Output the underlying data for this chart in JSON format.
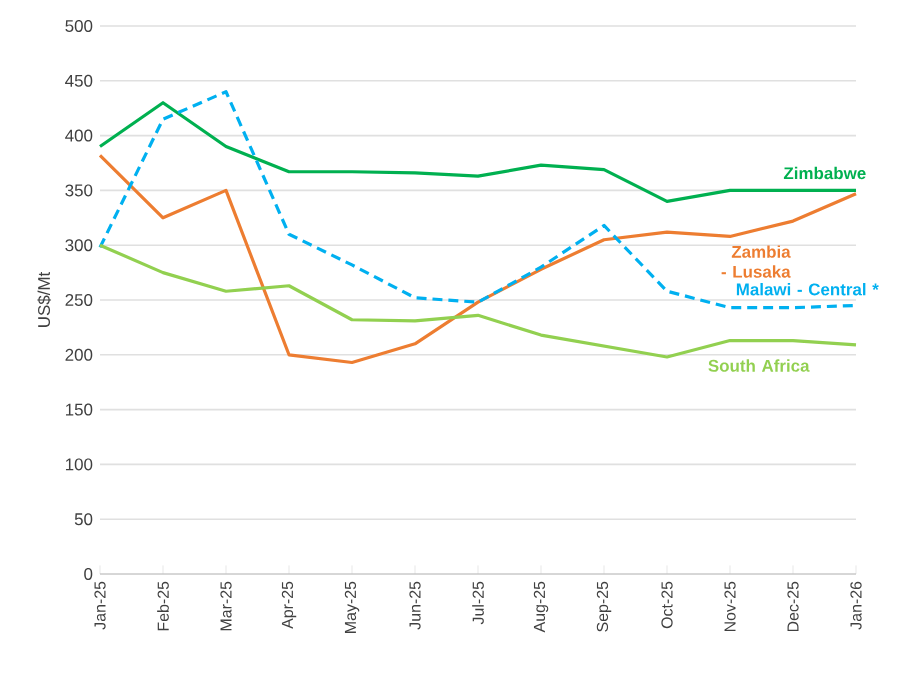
{
  "chart_data": {
    "type": "line",
    "ylabel": "US$/Mt",
    "categories": [
      "Jan-25",
      "Feb-25",
      "Mar-25",
      "Apr-25",
      "May-25",
      "Jun-25",
      "Jul-25",
      "Aug-25",
      "Sep-25",
      "Oct-25",
      "Nov-25",
      "Dec-25",
      "Jan-26"
    ],
    "ylim": [
      0,
      500
    ],
    "yticks": [
      0,
      50,
      100,
      150,
      200,
      250,
      300,
      350,
      400,
      450,
      500
    ],
    "grid": "y",
    "legend": false,
    "marker": "none",
    "series": [
      {
        "name": "Zimbabwe",
        "color": "#00b050",
        "line_style": "solid",
        "values": [
          390,
          430,
          390,
          367,
          367,
          366,
          363,
          373,
          369,
          340,
          350,
          350,
          350
        ]
      },
      {
        "name": "Zambia - Lusaka",
        "color": "#ed7d31",
        "line_style": "solid",
        "values": [
          382,
          325,
          350,
          200,
          193,
          210,
          248,
          278,
          305,
          312,
          308,
          322,
          347
        ]
      },
      {
        "name": "Malawi - Central *",
        "color": "#00b0f0",
        "line_style": "dashed",
        "values": [
          298,
          415,
          440,
          310,
          282,
          252,
          248,
          280,
          318,
          258,
          243,
          243,
          245
        ]
      },
      {
        "name": "South Africa",
        "color": "#92d050",
        "line_style": "solid",
        "values": [
          300,
          275,
          258,
          263,
          232,
          231,
          236,
          218,
          208,
          198,
          213,
          213,
          209
        ]
      }
    ]
  }
}
